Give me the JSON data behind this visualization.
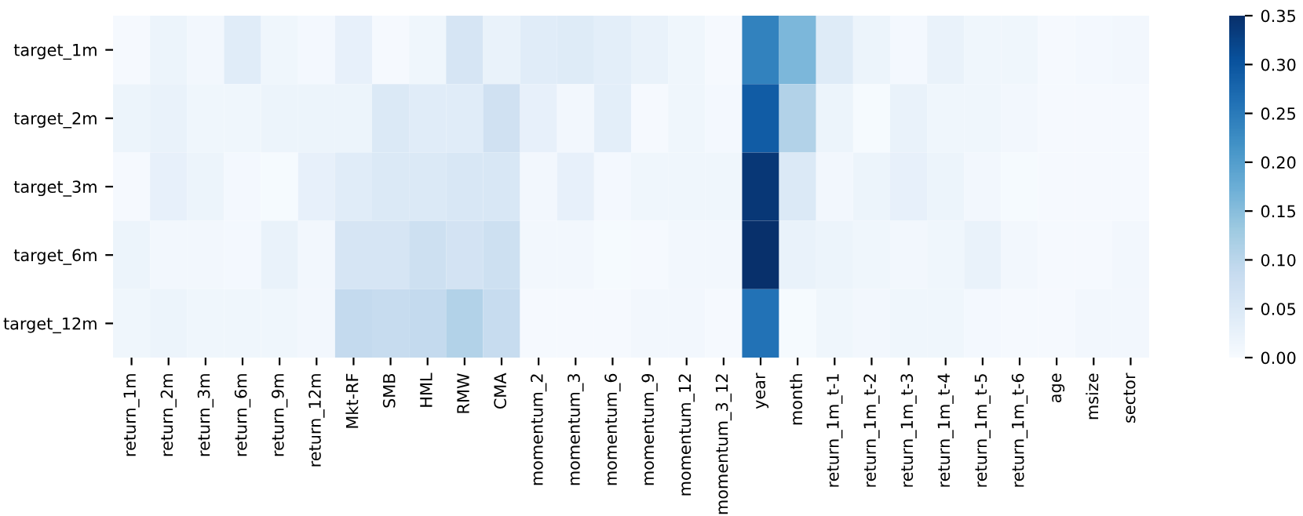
{
  "chart_data": {
    "type": "heatmap",
    "categories": [
      "return_1m",
      "return_2m",
      "return_3m",
      "return_6m",
      "return_9m",
      "return_12m",
      "Mkt-RF",
      "SMB",
      "HML",
      "RMW",
      "CMA",
      "momentum_2",
      "momentum_3",
      "momentum_6",
      "momentum_9",
      "momentum_12",
      "momentum_3_12",
      "year",
      "month",
      "return_1m_t-1",
      "return_1m_t-2",
      "return_1m_t-3",
      "return_1m_t-4",
      "return_1m_t-5",
      "return_1m_t-6",
      "age",
      "msize",
      "sector"
    ],
    "y_categories": [
      "target_1m",
      "target_2m",
      "target_3m",
      "target_6m",
      "target_12m"
    ],
    "cells": [
      [
        0.005,
        0.02,
        0.01,
        0.04,
        0.015,
        0.008,
        0.03,
        0.005,
        0.015,
        0.06,
        0.025,
        0.04,
        0.045,
        0.035,
        0.025,
        0.015,
        0.005,
        0.24,
        0.16,
        0.045,
        0.02,
        0.008,
        0.025,
        0.015,
        0.015,
        0.005,
        0.008,
        0.01
      ],
      [
        0.02,
        0.025,
        0.015,
        0.015,
        0.02,
        0.02,
        0.02,
        0.05,
        0.04,
        0.04,
        0.07,
        0.03,
        0.01,
        0.035,
        0.005,
        0.015,
        0.008,
        0.29,
        0.11,
        0.02,
        0.003,
        0.025,
        0.015,
        0.015,
        0.01,
        0.005,
        0.005,
        0.005
      ],
      [
        0.005,
        0.03,
        0.02,
        0.008,
        0.003,
        0.03,
        0.04,
        0.05,
        0.05,
        0.055,
        0.055,
        0.01,
        0.03,
        0.008,
        0.015,
        0.015,
        0.015,
        0.34,
        0.05,
        0.01,
        0.02,
        0.03,
        0.02,
        0.01,
        0.003,
        0.005,
        0.005,
        0.005
      ],
      [
        0.02,
        0.01,
        0.01,
        0.008,
        0.025,
        0.01,
        0.06,
        0.06,
        0.075,
        0.065,
        0.075,
        0.01,
        0.01,
        0.003,
        0.005,
        0.01,
        0.01,
        0.35,
        0.025,
        0.02,
        0.015,
        0.01,
        0.015,
        0.025,
        0.01,
        0.005,
        0.005,
        0.01
      ],
      [
        0.015,
        0.02,
        0.015,
        0.015,
        0.015,
        0.01,
        0.09,
        0.085,
        0.09,
        0.11,
        0.085,
        0.005,
        0.005,
        0.005,
        0.01,
        0.01,
        0.005,
        0.26,
        0.003,
        0.015,
        0.01,
        0.015,
        0.015,
        0.008,
        0.005,
        0.005,
        0.01,
        0.01
      ]
    ],
    "clim": [
      0,
      0.35
    ],
    "cticks": [
      {
        "value": 0,
        "label": "0.00"
      },
      {
        "value": 0.05,
        "label": "0.05"
      },
      {
        "value": 0.1,
        "label": "0.10"
      },
      {
        "value": 0.15,
        "label": "0.15"
      },
      {
        "value": 0.2,
        "label": "0.20"
      },
      {
        "value": 0.25,
        "label": "0.25"
      },
      {
        "value": 0.3,
        "label": "0.30"
      },
      {
        "value": 0.35,
        "label": "0.35"
      }
    ]
  }
}
